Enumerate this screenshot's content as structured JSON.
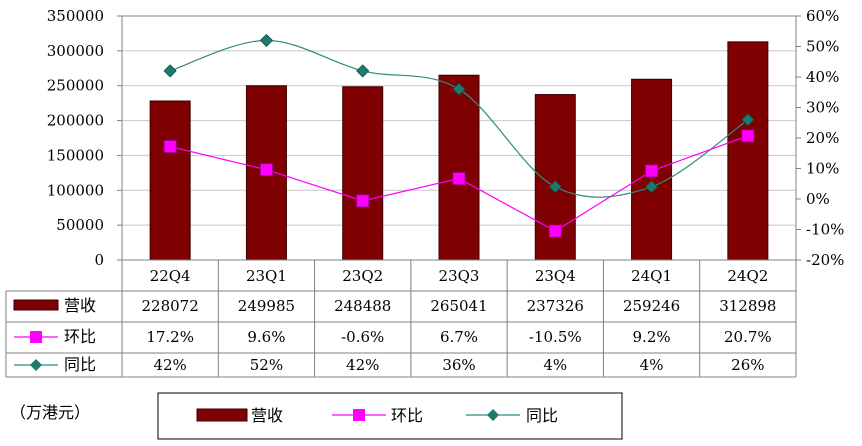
{
  "chart_data": {
    "type": "bar",
    "categories": [
      "22Q4",
      "23Q1",
      "23Q2",
      "23Q3",
      "23Q4",
      "24Q1",
      "24Q2"
    ],
    "series": [
      {
        "name": "营收",
        "type": "bar",
        "axis": "left",
        "values": [
          228072,
          249985,
          248488,
          265041,
          237326,
          259246,
          312898
        ],
        "labels": [
          "228072",
          "249985",
          "248488",
          "265041",
          "237326",
          "259246",
          "312898"
        ]
      },
      {
        "name": "环比",
        "type": "line",
        "axis": "right",
        "values": [
          17.2,
          9.6,
          -0.6,
          6.7,
          -10.5,
          9.2,
          20.7
        ],
        "labels": [
          "17.2%",
          "9.6%",
          "-0.6%",
          "6.7%",
          "-10.5%",
          "9.2%",
          "20.7%"
        ]
      },
      {
        "name": "同比",
        "type": "line",
        "axis": "right",
        "smooth": true,
        "values": [
          42,
          52,
          42,
          36,
          4,
          4,
          26
        ],
        "labels": [
          "42%",
          "52%",
          "42%",
          "36%",
          "4%",
          "4%",
          "26%"
        ]
      }
    ],
    "ylim": [
      0,
      350000
    ],
    "y_ticks": [
      "0",
      "50000",
      "100000",
      "150000",
      "200000",
      "250000",
      "300000",
      "350000"
    ],
    "y2lim": [
      -20,
      60
    ],
    "y2_ticks": [
      "-20%",
      "-10%",
      "0%",
      "10%",
      "20%",
      "30%",
      "40%",
      "50%",
      "60%"
    ],
    "grid": true,
    "legend_position": "bottom",
    "unit_note": "（万港元）",
    "colors": {
      "bar": "#7f0000",
      "hb": "#ff00ff",
      "tb": "#2e8b82",
      "hb_marker": "#ff00ff",
      "tb_marker": "#1f7a6e"
    }
  }
}
